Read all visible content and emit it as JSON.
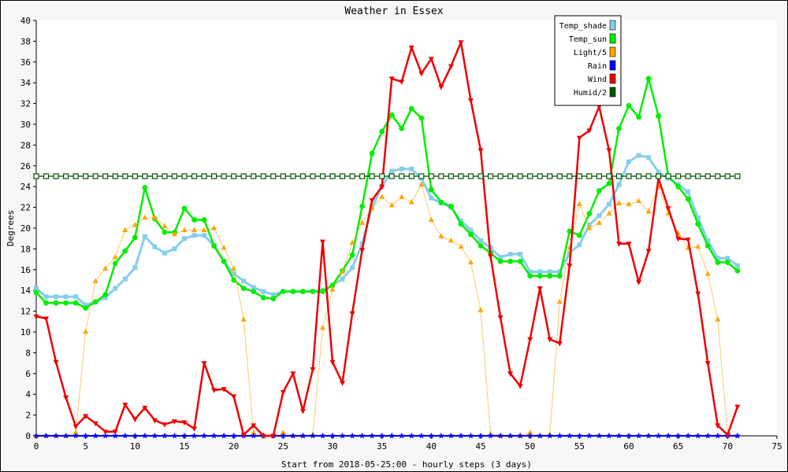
{
  "chart_data": {
    "type": "line",
    "title": "Weather in Essex",
    "xlabel": "Start from 2018-05-25:00 - hourly steps (3 days)",
    "ylabel": "Degrees",
    "xlim": [
      0,
      75
    ],
    "ylim": [
      0,
      40
    ],
    "xticks": [
      0,
      5,
      10,
      15,
      20,
      25,
      30,
      35,
      40,
      45,
      50,
      55,
      60,
      65,
      70,
      75
    ],
    "yticks": [
      0,
      2,
      4,
      6,
      8,
      10,
      12,
      14,
      16,
      18,
      20,
      22,
      24,
      26,
      28,
      30,
      32,
      34,
      36,
      38,
      40
    ],
    "grid": false,
    "legend_position": "top-right",
    "x": [
      0,
      1,
      2,
      3,
      4,
      5,
      6,
      7,
      8,
      9,
      10,
      11,
      12,
      13,
      14,
      15,
      16,
      17,
      18,
      19,
      20,
      21,
      22,
      23,
      24,
      25,
      26,
      27,
      28,
      29,
      30,
      31,
      32,
      33,
      34,
      35,
      36,
      37,
      38,
      39,
      40,
      41,
      42,
      43,
      44,
      45,
      46,
      47,
      48,
      49,
      50,
      51,
      52,
      53,
      54,
      55,
      56,
      57,
      58,
      59,
      60,
      61,
      62,
      63,
      64,
      65,
      66,
      67,
      68,
      69,
      70,
      71
    ],
    "series": [
      {
        "name": "Temp_shade",
        "color": "#87ceeb",
        "marker": "square",
        "values": [
          14.2,
          13.4,
          13.4,
          13.4,
          13.4,
          12.6,
          12.9,
          13.3,
          14.2,
          15.1,
          16.2,
          19.2,
          18.2,
          17.6,
          18.0,
          19.0,
          19.3,
          19.3,
          18.3,
          16.8,
          15.6,
          14.9,
          14.3,
          13.9,
          13.6,
          13.9,
          13.9,
          13.9,
          13.9,
          14.0,
          14.5,
          15.1,
          16.2,
          18.5,
          22.0,
          24.0,
          25.5,
          25.7,
          25.7,
          24.8,
          22.9,
          22.4,
          22.0,
          20.7,
          19.8,
          18.8,
          18.1,
          17.2,
          17.5,
          17.5,
          15.8,
          15.8,
          15.8,
          15.8,
          17.6,
          18.4,
          20.3,
          21.2,
          22.3,
          24.2,
          26.4,
          27.0,
          26.8,
          25.4,
          24.8,
          24.2,
          23.5,
          21.0,
          18.8,
          17.1,
          17.1,
          16.4
        ]
      },
      {
        "name": "Temp_sun",
        "color": "#00ee00",
        "marker": "circle",
        "values": [
          13.8,
          12.8,
          12.8,
          12.8,
          12.8,
          12.3,
          12.9,
          13.6,
          16.6,
          17.8,
          19.1,
          23.9,
          20.9,
          19.6,
          19.6,
          21.9,
          20.8,
          20.8,
          18.3,
          16.8,
          15.0,
          14.2,
          13.9,
          13.3,
          13.2,
          13.9,
          13.9,
          13.9,
          13.9,
          13.9,
          14.5,
          15.9,
          17.4,
          22.1,
          27.2,
          29.3,
          30.9,
          29.6,
          31.5,
          30.6,
          23.7,
          22.5,
          22.1,
          20.4,
          19.4,
          18.3,
          17.6,
          16.8,
          16.8,
          16.8,
          15.4,
          15.4,
          15.4,
          15.4,
          19.7,
          19.3,
          21.4,
          23.6,
          24.3,
          29.6,
          31.8,
          30.7,
          34.4,
          30.8,
          25.0,
          24.0,
          22.8,
          20.4,
          18.3,
          16.7,
          16.7,
          15.9
        ]
      },
      {
        "name": "Light/5",
        "color": "#ffa500",
        "marker": "triangle",
        "values": [
          0.0,
          0.0,
          0.0,
          0.0,
          0.3,
          10.0,
          14.9,
          16.1,
          17.2,
          19.8,
          20.3,
          21.0,
          21.0,
          20.2,
          19.4,
          19.8,
          19.8,
          19.8,
          20.0,
          18.1,
          16.1,
          11.2,
          0.3,
          0.0,
          0.0,
          0.3,
          0.0,
          0.0,
          0.1,
          10.4,
          14.1,
          15.8,
          18.6,
          20.5,
          21.9,
          23.0,
          22.2,
          23.0,
          22.5,
          24.2,
          20.8,
          19.2,
          18.8,
          18.2,
          16.7,
          12.1,
          0.2,
          0.0,
          0.0,
          0.0,
          0.3,
          0.0,
          0.1,
          12.9,
          18.1,
          22.3,
          20.0,
          20.5,
          21.4,
          22.4,
          22.3,
          22.6,
          21.6,
          24.0,
          21.4,
          19.5,
          18.1,
          18.2,
          15.6,
          11.2,
          0.2,
          0.0
        ]
      },
      {
        "name": "Rain",
        "color": "#0000ff",
        "marker": "star",
        "values": [
          0,
          0,
          0,
          0,
          0,
          0,
          0,
          0,
          0,
          0,
          0,
          0,
          0,
          0,
          0,
          0,
          0,
          0,
          0,
          0,
          0,
          0,
          0,
          0,
          0,
          0,
          0,
          0,
          0,
          0,
          0,
          0,
          0,
          0,
          0,
          0,
          0,
          0,
          0,
          0,
          0,
          0,
          0,
          0,
          0,
          0,
          0,
          0,
          0,
          0,
          0,
          0,
          0,
          0,
          0,
          0,
          0,
          0,
          0,
          0,
          0,
          0,
          0,
          0,
          0,
          0,
          0,
          0,
          0,
          0,
          0,
          0
        ]
      },
      {
        "name": "Wind",
        "color": "#ee0000",
        "marker": "triangle-down",
        "values": [
          11.5,
          11.3,
          7.1,
          3.7,
          0.9,
          1.9,
          1.2,
          0.4,
          0.4,
          3.0,
          1.6,
          2.7,
          1.5,
          1.1,
          1.4,
          1.3,
          0.7,
          7.0,
          4.4,
          4.5,
          3.8,
          0.1,
          1.0,
          0.0,
          0.0,
          4.2,
          6.0,
          2.4,
          6.4,
          18.7,
          7.1,
          5.1,
          11.8,
          17.9,
          22.7,
          24.0,
          34.4,
          34.1,
          37.4,
          34.9,
          36.3,
          33.6,
          35.6,
          37.9,
          32.3,
          27.5,
          17.3,
          11.4,
          6.0,
          4.8,
          9.3,
          14.2,
          9.3,
          8.9,
          16.4,
          28.7,
          29.4,
          31.7,
          27.5,
          18.5,
          18.5,
          14.8,
          17.8,
          24.8,
          21.9,
          19.0,
          18.9,
          13.7,
          7.0,
          1.0,
          0.1,
          2.8
        ]
      },
      {
        "name": "Humid/2",
        "color": "#005500",
        "marker": "square-open",
        "values": [
          25,
          25,
          25,
          25,
          25,
          25,
          25,
          25,
          25,
          25,
          25,
          25,
          25,
          25,
          25,
          25,
          25,
          25,
          25,
          25,
          25,
          25,
          25,
          25,
          25,
          25,
          25,
          25,
          25,
          25,
          25,
          25,
          25,
          25,
          25,
          25,
          25,
          25,
          25,
          25,
          25,
          25,
          25,
          25,
          25,
          25,
          25,
          25,
          25,
          25,
          25,
          25,
          25,
          25,
          25,
          25,
          25,
          25,
          25,
          25,
          25,
          25,
          25,
          25,
          25,
          25,
          25,
          25,
          25,
          25,
          25,
          25
        ]
      }
    ]
  }
}
